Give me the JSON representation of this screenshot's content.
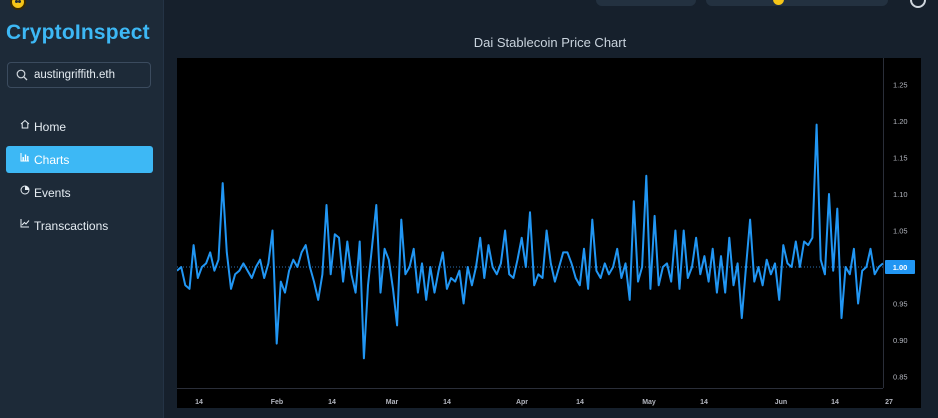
{
  "app": {
    "title": "CryptoInspect"
  },
  "search": {
    "value": "austingriffith.eth",
    "placeholder": ""
  },
  "nav": {
    "items": [
      {
        "label": "Home",
        "icon": "home-icon",
        "active": false
      },
      {
        "label": "Charts",
        "icon": "chart-icon",
        "active": true
      },
      {
        "label": "Events",
        "icon": "events-icon",
        "active": false
      },
      {
        "label": "Transcactions",
        "icon": "transactions-icon",
        "active": false
      }
    ]
  },
  "colors": {
    "accent": "#3db8f5",
    "line": "#2196f3",
    "chart_bg": "#000000"
  },
  "chart_data": {
    "type": "line",
    "title": "Dai Stablecoin Price Chart",
    "series_name": "",
    "ylim": [
      0.82,
      1.28
    ],
    "y_ticks": [
      "1.25",
      "1.20",
      "1.15",
      "1.10",
      "1.05",
      "1.00",
      "0.95",
      "0.90",
      "0.85"
    ],
    "x_ticks": [
      "14",
      "Feb",
      "14",
      "Mar",
      "14",
      "Apr",
      "14",
      "May",
      "14",
      "Jun",
      "14",
      "27"
    ],
    "current_value": "1.00",
    "reference_line": 1.0,
    "values": [
      0.995,
      1.0,
      0.975,
      0.97,
      1.03,
      0.985,
      1.0,
      1.005,
      1.02,
      0.995,
      1.01,
      1.115,
      1.02,
      0.97,
      0.99,
      0.995,
      1.005,
      0.995,
      0.985,
      1.0,
      1.01,
      0.985,
      1.005,
      1.05,
      0.895,
      0.98,
      0.965,
      0.995,
      1.01,
      1.0,
      1.02,
      1.03,
      1.0,
      0.98,
      0.955,
      0.99,
      1.085,
      0.99,
      1.045,
      1.04,
      0.98,
      1.035,
      0.99,
      0.965,
      1.035,
      0.875,
      0.975,
      1.03,
      1.085,
      0.965,
      1.025,
      1.01,
      0.97,
      0.92,
      1.065,
      0.99,
      1.0,
      1.025,
      0.965,
      1.005,
      0.955,
      1.0,
      0.965,
      0.995,
      1.02,
      0.97,
      0.985,
      0.98,
      0.995,
      0.95,
      1.0,
      0.975,
      1.0,
      1.04,
      0.985,
      1.03,
      1.0,
      0.99,
      1.005,
      1.05,
      0.99,
      0.985,
      1.01,
      1.04,
      1.0,
      1.075,
      0.975,
      0.99,
      0.985,
      1.05,
      1.005,
      0.98,
      1.0,
      1.02,
      1.02,
      1.005,
      0.985,
      0.975,
      1.025,
      0.97,
      1.065,
      0.995,
      0.985,
      1.005,
      0.99,
      1.0,
      1.025,
      0.985,
      1.005,
      0.955,
      1.09,
      0.98,
      1.0,
      1.125,
      0.97,
      1.07,
      0.975,
      1.0,
      1.005,
      0.98,
      1.05,
      0.97,
      1.05,
      0.985,
      1.0,
      1.04,
      0.99,
      1.015,
      0.98,
      1.025,
      0.965,
      1.015,
      0.965,
      1.04,
      0.975,
      1.005,
      0.93,
      1.0,
      1.065,
      0.98,
      1.0,
      0.975,
      1.01,
      0.99,
      1.005,
      0.955,
      1.03,
      1.005,
      1.0,
      1.035,
      1.0,
      1.035,
      1.03,
      1.04,
      1.195,
      1.01,
      0.99,
      1.1,
      0.995,
      1.08,
      0.93,
      1.0,
      0.99,
      1.025,
      0.95,
      0.995,
      1.0,
      1.025,
      0.99,
      1.0,
      1.005
    ]
  }
}
